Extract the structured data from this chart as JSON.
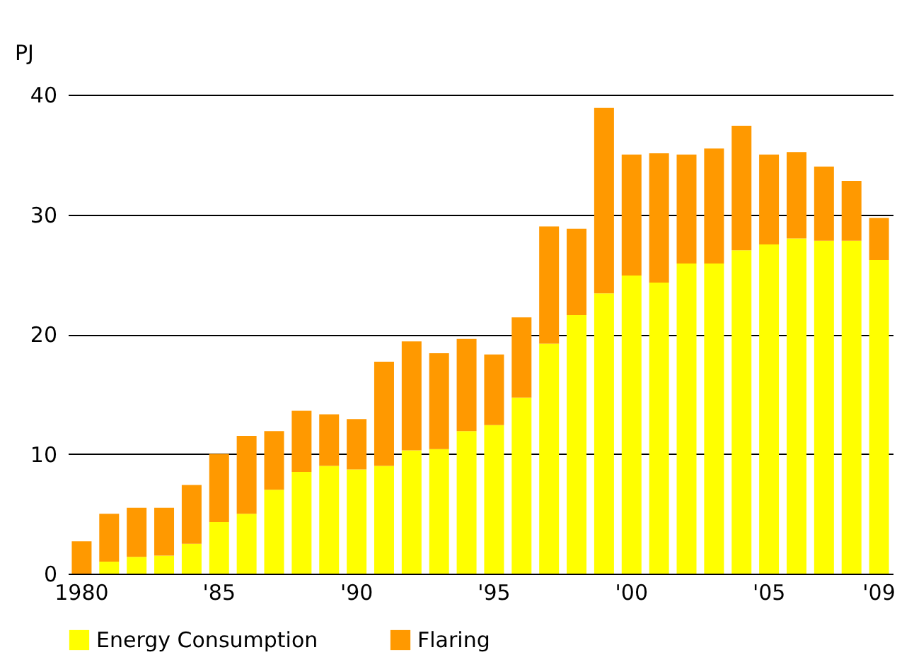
{
  "chart_data": {
    "type": "bar",
    "stacked": true,
    "ylabel": "PJ",
    "categories": [
      "1980",
      null,
      null,
      null,
      null,
      "'85",
      null,
      null,
      null,
      null,
      "'90",
      null,
      null,
      null,
      null,
      "'95",
      null,
      null,
      null,
      null,
      "'00",
      null,
      null,
      null,
      null,
      "'05",
      null,
      null,
      null,
      "'09"
    ],
    "series": [
      {
        "name": "Energy Consumption",
        "color": "#ffff00",
        "values": [
          0,
          1.0,
          1.4,
          1.5,
          2.5,
          4.3,
          5.0,
          7.0,
          8.5,
          9.0,
          8.7,
          9.0,
          10.3,
          10.4,
          11.9,
          12.4,
          14.7,
          19.2,
          21.6,
          23.4,
          24.9,
          24.3,
          25.9,
          25.9,
          27.0,
          27.5,
          28.0,
          27.8,
          27.8,
          26.2
        ]
      },
      {
        "name": "Flaring",
        "color": "#ff9900",
        "values": [
          2.7,
          4.0,
          4.1,
          4.0,
          4.9,
          5.7,
          6.5,
          4.9,
          5.1,
          4.3,
          4.2,
          8.7,
          9.1,
          8.0,
          7.7,
          5.9,
          6.7,
          9.8,
          7.2,
          15.5,
          10.1,
          10.8,
          9.1,
          9.6,
          10.4,
          7.5,
          7.2,
          6.2,
          5.0,
          3.5
        ]
      }
    ],
    "ylim": [
      0,
      40
    ],
    "yticks": [
      0,
      10,
      20,
      30,
      40
    ],
    "grid": "y",
    "legend": "bottom"
  }
}
